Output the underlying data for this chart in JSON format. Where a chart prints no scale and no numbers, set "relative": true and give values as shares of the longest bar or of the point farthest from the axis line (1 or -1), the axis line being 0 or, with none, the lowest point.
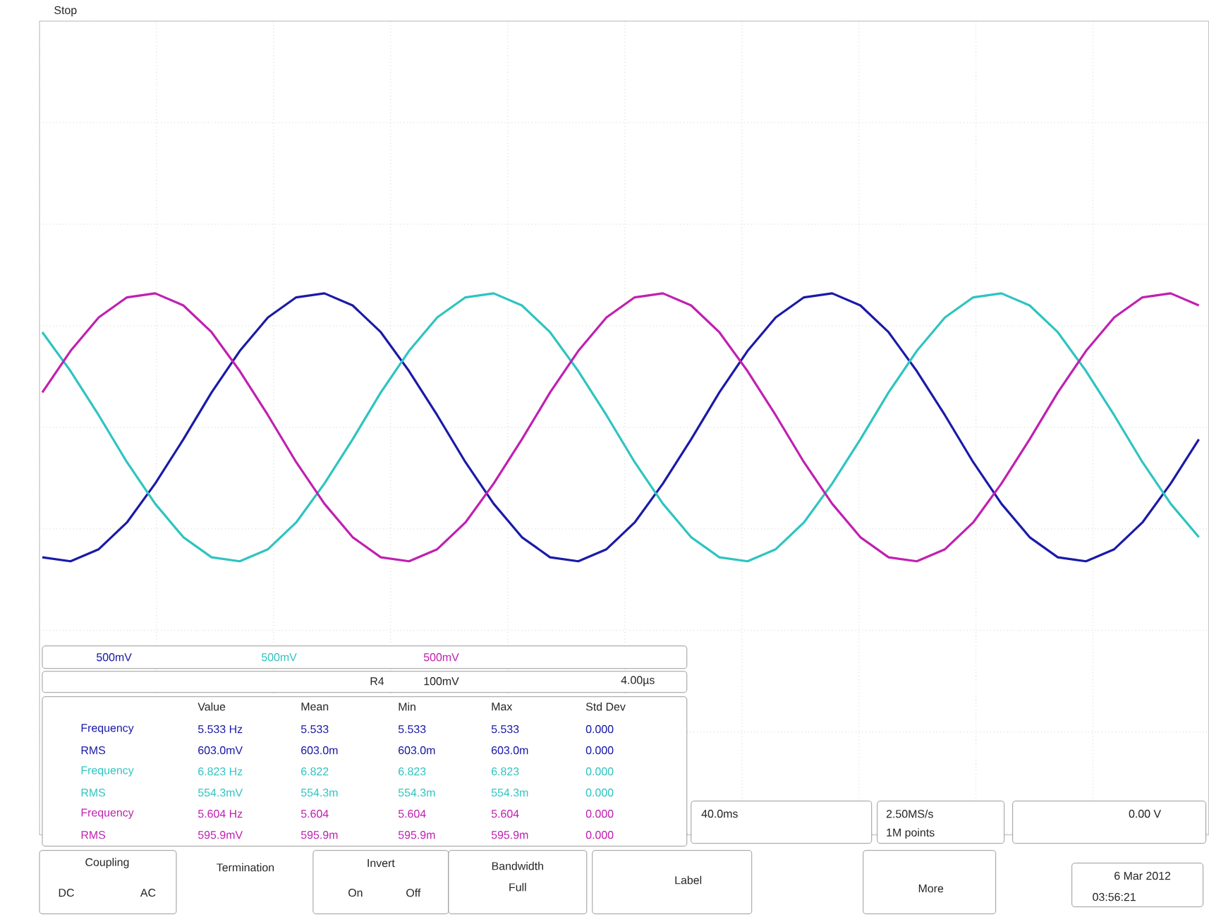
{
  "chart_data": {
    "type": "line",
    "relative": true,
    "grid": true,
    "categories": [
      null,
      null,
      null,
      null,
      null,
      null,
      null,
      null,
      null,
      null,
      null,
      null,
      null,
      null,
      null,
      null,
      null,
      null,
      null,
      null,
      null,
      null,
      null,
      null,
      null,
      null,
      null,
      null,
      null,
      null,
      null,
      null,
      null,
      null,
      null,
      null,
      null,
      null,
      null,
      null,
      null,
      null
    ],
    "series": [
      {
        "color": "#1a1aa8",
        "values": [
          -0.97,
          -1.0,
          -0.91,
          -0.71,
          -0.42,
          -0.09,
          0.26,
          0.57,
          0.82,
          0.97,
          1.0,
          0.91,
          0.71,
          0.42,
          0.09,
          -0.26,
          -0.57,
          -0.82,
          -0.97,
          -1.0,
          -0.91,
          -0.71,
          -0.42,
          -0.09,
          0.26,
          0.57,
          0.82,
          0.97,
          1.0,
          0.91,
          0.71,
          0.42,
          0.09,
          -0.26,
          -0.57,
          -0.82,
          -0.97,
          -1.0,
          -0.91,
          -0.71,
          -0.42,
          -0.09
        ]
      },
      {
        "color": "#2ec4c0",
        "values": [
          0.71,
          0.42,
          0.09,
          -0.26,
          -0.57,
          -0.82,
          -0.97,
          -1.0,
          -0.91,
          -0.71,
          -0.42,
          -0.09,
          0.26,
          0.57,
          0.82,
          0.97,
          1.0,
          0.91,
          0.71,
          0.42,
          0.09,
          -0.26,
          -0.57,
          -0.82,
          -0.97,
          -1.0,
          -0.91,
          -0.71,
          -0.42,
          -0.09,
          0.26,
          0.57,
          0.82,
          0.97,
          1.0,
          0.91,
          0.71,
          0.42,
          0.09,
          -0.26,
          -0.57,
          -0.82
        ]
      },
      {
        "color": "#c020b0",
        "values": [
          0.26,
          0.57,
          0.82,
          0.97,
          1.0,
          0.91,
          0.71,
          0.42,
          0.09,
          -0.26,
          -0.57,
          -0.82,
          -0.97,
          -1.0,
          -0.91,
          -0.71,
          -0.42,
          -0.09,
          0.26,
          0.57,
          0.82,
          0.97,
          1.0,
          0.91,
          0.71,
          0.42,
          0.09,
          -0.26,
          -0.57,
          -0.82,
          -0.97,
          -1.0,
          -0.91,
          -0.71,
          -0.42,
          -0.09,
          0.26,
          0.57,
          0.82,
          0.97,
          1.0,
          0.91
        ]
      }
    ],
    "annotations": [
      "Stop",
      "500mV",
      "500mV",
      "500mV",
      "R4",
      "100mV",
      "4.00µs",
      "Value",
      "Mean",
      "Min",
      "Max",
      "Std Dev",
      "Frequency",
      "5.533 Hz",
      "5.533",
      "5.533",
      "5.533",
      "0.000",
      "RMS",
      "603.0mV",
      "603.0m",
      "603.0m",
      "603.0m",
      "0.000",
      "Frequency",
      "6.823 Hz",
      "6.822",
      "6.823",
      "6.823",
      "0.000",
      "RMS",
      "554.3mV",
      "554.3m",
      "554.3m",
      "554.3m",
      "0.000",
      "Frequency",
      "5.604 Hz",
      "5.604",
      "5.604",
      "5.604",
      "0.000",
      "RMS",
      "595.9mV",
      "595.9m",
      "595.9m",
      "595.9m",
      "0.000",
      "40.0ms",
      "2.50MS/s",
      "1M points",
      "0.00 V",
      "Coupling",
      "DC",
      "AC",
      "Termination",
      "Invert",
      "On",
      "Off",
      "Bandwidth",
      "Full",
      "Label",
      "More",
      "6 Mar 2012",
      "03:56:21"
    ]
  }
}
